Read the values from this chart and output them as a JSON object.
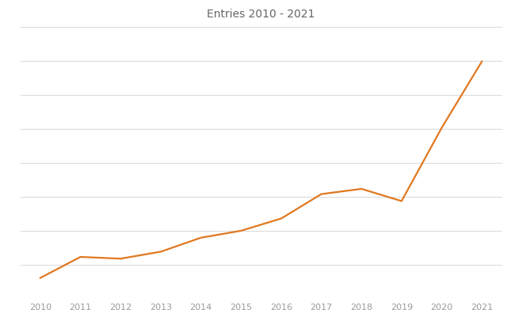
{
  "title": "Entries 2010 - 2021",
  "years": [
    2010,
    2011,
    2012,
    2013,
    2014,
    2015,
    2016,
    2017,
    2018,
    2019,
    2020,
    2021
  ],
  "values": [
    100,
    160,
    155,
    175,
    215,
    235,
    270,
    340,
    355,
    320,
    530,
    720
  ],
  "line_color": "#E07820",
  "background_color": "#FFFFFF",
  "grid_color": "#D8D8D8",
  "title_fontsize": 10,
  "tick_label_color": "#999999",
  "title_color": "#666666",
  "line_width": 1.6,
  "xlim": [
    2009.5,
    2021.5
  ],
  "ylim": [
    40,
    820
  ],
  "n_gridlines": 8
}
